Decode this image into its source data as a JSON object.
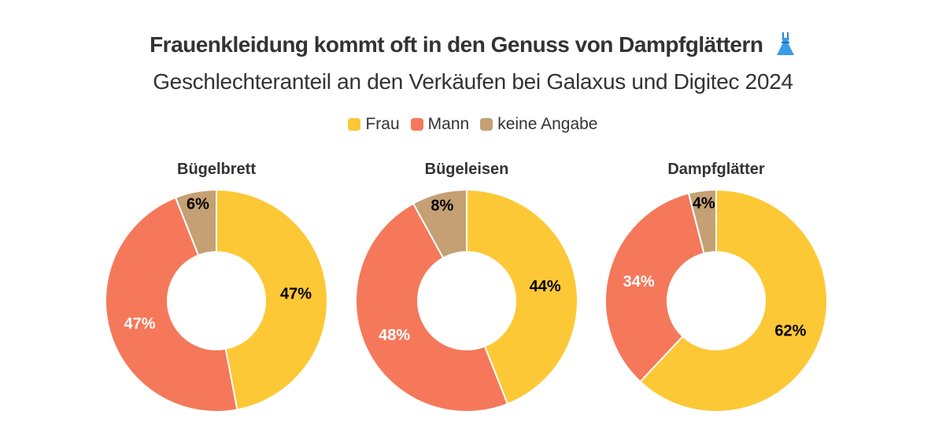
{
  "header": {
    "title": "Frauenkleidung kommt oft in den Genuss von Dampfglättern",
    "subtitle": "Geschlechteranteil an den Verkäufen bei Galaxus und Digitec 2024"
  },
  "legend": [
    {
      "label": "Frau",
      "color": "#FDC835"
    },
    {
      "label": "Mann",
      "color": "#F5785A"
    },
    {
      "label": "keine Angabe",
      "color": "#C4A074"
    }
  ],
  "chart_data": [
    {
      "type": "pie",
      "title": "Bügelbrett",
      "categories": [
        "Frau",
        "Mann",
        "keine Angabe"
      ],
      "values": [
        47,
        47,
        6
      ],
      "labels": [
        "47%",
        "47%",
        "6%"
      ]
    },
    {
      "type": "pie",
      "title": "Bügeleisen",
      "categories": [
        "Frau",
        "Mann",
        "keine Angabe"
      ],
      "values": [
        44,
        48,
        8
      ],
      "labels": [
        "44%",
        "48%",
        "8%"
      ]
    },
    {
      "type": "pie",
      "title": "Dampfglätter",
      "categories": [
        "Frau",
        "Mann",
        "keine Angabe"
      ],
      "values": [
        62,
        34,
        4
      ],
      "labels": [
        "62%",
        "34%",
        "4%"
      ]
    }
  ],
  "style": {
    "label_dark": "#000000",
    "label_light": "#ffffff"
  }
}
